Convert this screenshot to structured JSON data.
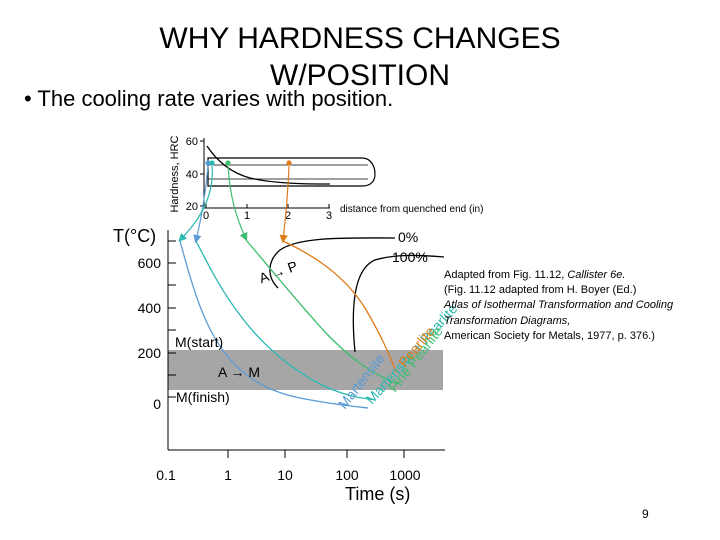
{
  "slide": {
    "title_line1": "WHY HARDNESS CHANGES",
    "title_line2": "W/POSITION",
    "bullet": "• The cooling rate varies with position.",
    "page_number": "9"
  },
  "inset": {
    "ylabel": "Hardness, HRC",
    "xlabel": "distance from quenched end (in)",
    "y_ticks": [
      "60",
      "40",
      "20"
    ],
    "x_ticks": [
      "0",
      "1",
      "2",
      "3"
    ]
  },
  "ttt": {
    "ylabel": "T(°C)",
    "y_ticks": [
      "600",
      "400",
      "200",
      "0"
    ],
    "x_ticks": [
      "0.1",
      "1",
      "10",
      "100",
      "1000"
    ],
    "xlabel": "Time (s)",
    "pct_0": "0%",
    "pct_100": "100%",
    "a_to_p": "A → P",
    "m_start": "M(start)",
    "m_finish": "M(finish)",
    "a_to_m": "A → M",
    "label_martensite": "Martensite",
    "label_mart_pearlite": "Martensite + Pearlite",
    "label_fine_pearlite": "Fine Pearlite",
    "label_pearlite": "Pearlite"
  },
  "caption": {
    "line1_pre": "Adapted from Fig. 11.12, ",
    "line1_italic": "Callister 6e.",
    "line2": "(Fig. 11.12 adapted from H. Boyer (Ed.)",
    "line3_italic": "Atlas of Isothermal Transformation and Cooling Transformation Diagrams,",
    "line4": "American Society for Metals, 1977, p. 376.)"
  },
  "colors": {
    "blue": "#5b9bd5",
    "cyan": "#2bb9b1",
    "green": "#3dbd6e",
    "orange": "#e07c1a",
    "band": "#a6a6a6"
  }
}
